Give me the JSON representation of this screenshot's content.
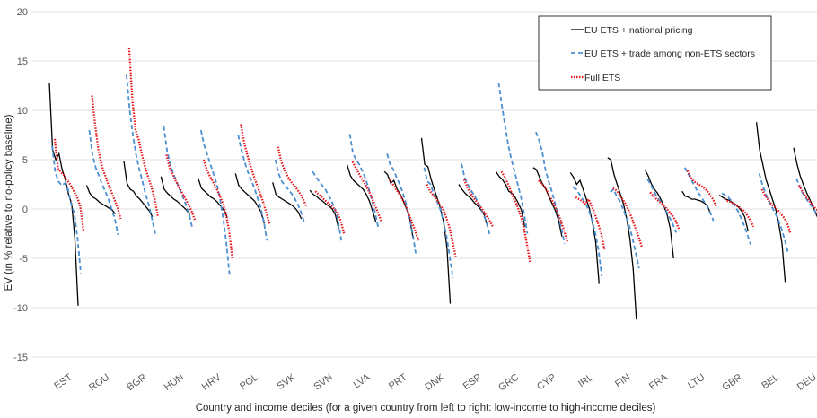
{
  "chart_data": {
    "type": "line",
    "xlabel": "Country and income deciles (for a given country from left to right: low-income to high-income deciles)",
    "ylabel": "EV (in % relative to no-policy baseline)",
    "ylim": [
      -15,
      20
    ],
    "yticks": [
      -15,
      -10,
      -5,
      0,
      5,
      10,
      15,
      20
    ],
    "grid": true,
    "legend_position": "top-right",
    "categories": [
      "EST",
      "ROU",
      "BGR",
      "HUN",
      "HRV",
      "POL",
      "SVK",
      "SVN",
      "LVA",
      "PRT",
      "DNK",
      "ESP",
      "GRC",
      "CYP",
      "IRL",
      "FIN",
      "FRA",
      "LTU",
      "GBR",
      "BEL",
      "DEU"
    ],
    "tick_labels": [
      "EST",
      "ROU",
      "BGR",
      "HUN",
      "HRV",
      "POL",
      "SVK",
      "SVN",
      "LVA",
      "PRT",
      "DNK",
      "ESP",
      "GRC",
      "CYP",
      "IRL",
      "FIN",
      "FRA",
      "LTU",
      "GBR",
      "BEL",
      "DEU"
    ],
    "series": [
      {
        "name": "EU ETS + national pricing",
        "color": "#000000",
        "dash": "solid",
        "values": [
          [
            12.8,
            6.0,
            5.0,
            5.6,
            4.0,
            3.0,
            1.5,
            0.5,
            -3.0,
            -9.8
          ],
          [
            2.4,
            1.6,
            1.2,
            1.0,
            0.7,
            0.5,
            0.3,
            0.1,
            -0.1,
            -0.5
          ],
          [
            4.9,
            2.6,
            2.0,
            1.8,
            1.3,
            1.0,
            0.6,
            0.2,
            -0.2,
            -0.8
          ],
          [
            3.3,
            2.0,
            1.6,
            1.3,
            1.0,
            0.8,
            0.5,
            0.2,
            -0.1,
            -0.6
          ],
          [
            3.1,
            2.1,
            1.8,
            1.5,
            1.2,
            1.0,
            0.7,
            0.3,
            -0.1,
            -0.8
          ],
          [
            3.6,
            2.4,
            2.0,
            1.7,
            1.4,
            1.1,
            0.8,
            0.3,
            -0.3,
            -1.5
          ],
          [
            2.7,
            1.5,
            1.2,
            1.0,
            0.8,
            0.6,
            0.4,
            0.1,
            -0.3,
            -1.0
          ],
          [
            1.9,
            1.5,
            1.3,
            1.0,
            0.8,
            0.5,
            0.3,
            0.0,
            -0.6,
            -2.0
          ],
          [
            4.5,
            3.4,
            2.9,
            2.6,
            2.3,
            2.0,
            1.5,
            0.8,
            -0.2,
            -1.3
          ],
          [
            3.8,
            3.5,
            2.6,
            2.9,
            2.0,
            1.5,
            0.8,
            0.0,
            -1.0,
            -3.0
          ],
          [
            7.2,
            4.5,
            4.3,
            3.0,
            2.0,
            1.0,
            0.0,
            -1.5,
            -4.0,
            -9.6
          ],
          [
            2.5,
            2.0,
            1.6,
            1.3,
            1.0,
            0.6,
            0.3,
            -0.1,
            -0.6,
            -1.8
          ],
          [
            3.8,
            3.3,
            3.0,
            2.5,
            1.8,
            1.6,
            1.2,
            0.6,
            -0.1,
            -1.8
          ],
          [
            4.2,
            4.0,
            3.2,
            2.5,
            2.0,
            1.2,
            0.5,
            -0.2,
            -1.2,
            -2.8
          ],
          [
            3.7,
            3.2,
            2.5,
            2.9,
            2.0,
            1.0,
            0.0,
            -1.5,
            -3.5,
            -7.6
          ],
          [
            5.2,
            5.0,
            3.5,
            2.5,
            1.5,
            0.5,
            -1.0,
            -3.0,
            -6.0,
            -11.2
          ],
          [
            4.0,
            3.4,
            2.6,
            2.0,
            1.6,
            1.0,
            0.3,
            -0.6,
            -2.0,
            -5.0
          ],
          [
            1.8,
            1.3,
            1.2,
            1.0,
            1.0,
            0.9,
            0.8,
            0.6,
            0.3,
            -0.5
          ],
          [
            1.4,
            1.2,
            1.0,
            0.9,
            0.7,
            0.5,
            0.2,
            -0.2,
            -0.8,
            -2.2
          ],
          [
            8.8,
            6.0,
            4.5,
            3.0,
            2.0,
            1.0,
            0.0,
            -1.5,
            -3.5,
            -7.4
          ],
          [
            6.2,
            4.6,
            3.4,
            2.5,
            1.7,
            1.0,
            0.3,
            -0.5,
            -1.2,
            -2.0
          ]
        ]
      },
      {
        "name": "EU ETS + trade among non-ETS sectors",
        "color": "#4a8fd1",
        "dash": "dashed",
        "values": [
          [
            6.4,
            3.7,
            2.8,
            2.4,
            2.6,
            2.0,
            0.5,
            -0.5,
            -3.0,
            -6.5
          ],
          [
            8.0,
            5.5,
            4.2,
            3.4,
            2.5,
            1.8,
            1.0,
            0.0,
            -1.0,
            -2.6
          ],
          [
            13.6,
            10.0,
            7.5,
            5.5,
            4.0,
            2.8,
            1.5,
            0.4,
            -1.0,
            -2.5
          ],
          [
            8.4,
            6.0,
            4.6,
            3.6,
            2.8,
            2.0,
            1.2,
            0.4,
            -0.6,
            -2.0
          ],
          [
            8.0,
            6.5,
            5.5,
            4.5,
            3.5,
            2.5,
            1.0,
            -1.0,
            -3.5,
            -6.8
          ],
          [
            7.5,
            6.0,
            4.8,
            3.8,
            3.0,
            2.2,
            1.2,
            0.2,
            -1.2,
            -3.2
          ],
          [
            5.0,
            3.6,
            2.8,
            2.4,
            2.0,
            1.6,
            1.1,
            0.5,
            -0.3,
            -1.3
          ],
          [
            3.8,
            3.3,
            2.8,
            2.4,
            2.0,
            1.4,
            0.8,
            0.0,
            -1.2,
            -3.2
          ],
          [
            7.6,
            5.6,
            5.0,
            4.5,
            3.8,
            3.0,
            2.0,
            0.8,
            -0.5,
            -2.0
          ],
          [
            5.6,
            4.5,
            4.0,
            3.2,
            2.5,
            1.6,
            0.5,
            -0.8,
            -2.4,
            -4.5
          ],
          [
            4.2,
            2.8,
            2.5,
            1.5,
            0.8,
            0.0,
            -1.2,
            -2.8,
            -4.8,
            -7.0
          ],
          [
            4.6,
            3.2,
            2.5,
            1.9,
            1.4,
            0.8,
            0.2,
            -0.6,
            -1.5,
            -2.8
          ],
          [
            12.8,
            10.5,
            8.5,
            6.5,
            5.0,
            3.8,
            2.5,
            1.2,
            -0.5,
            -2.5
          ],
          [
            7.8,
            7.0,
            5.8,
            4.0,
            2.8,
            1.8,
            0.6,
            -0.6,
            -2.0,
            -3.5
          ],
          [
            2.2,
            2.0,
            1.5,
            1.0,
            0.5,
            -0.2,
            -1.2,
            -2.5,
            -4.2,
            -6.8
          ],
          [
            1.7,
            2.0,
            1.3,
            0.8,
            0.0,
            -0.8,
            -1.8,
            -3.0,
            -4.5,
            -6.0
          ],
          [
            3.0,
            2.5,
            1.8,
            1.2,
            0.8,
            0.3,
            -0.3,
            -0.9,
            -1.6,
            -2.4
          ],
          [
            4.2,
            3.6,
            3.0,
            2.4,
            1.8,
            1.3,
            0.8,
            0.3,
            -0.4,
            -1.2
          ],
          [
            1.6,
            1.4,
            1.2,
            0.8,
            0.3,
            -0.2,
            -0.9,
            -1.7,
            -2.6,
            -3.6
          ],
          [
            3.6,
            2.5,
            1.6,
            0.8,
            0.2,
            -0.4,
            -1.1,
            -2.0,
            -3.1,
            -4.4
          ],
          [
            3.1,
            2.3,
            1.6,
            1.1,
            0.6,
            0.2,
            -0.3,
            -0.7,
            -1.1,
            -1.5
          ]
        ]
      },
      {
        "name": "Full ETS",
        "color": "#e8141a",
        "dash": "dotted",
        "values": [
          [
            7.1,
            4.1,
            3.7,
            3.4,
            2.9,
            2.4,
            1.8,
            1.2,
            0.3,
            -2.2
          ],
          [
            11.5,
            8.5,
            6.0,
            4.5,
            3.5,
            2.6,
            1.8,
            1.0,
            0.2,
            -1.0
          ],
          [
            16.3,
            11.0,
            8.0,
            7.0,
            5.5,
            4.2,
            3.2,
            2.2,
            1.0,
            -0.8
          ],
          [
            5.5,
            4.2,
            3.5,
            2.8,
            2.2,
            1.6,
            1.0,
            0.4,
            -0.3,
            -1.2
          ],
          [
            5.0,
            4.0,
            3.3,
            2.7,
            2.1,
            1.4,
            0.6,
            -0.5,
            -2.2,
            -5.0
          ],
          [
            8.6,
            6.8,
            5.5,
            4.4,
            3.4,
            2.5,
            1.6,
            0.7,
            -0.4,
            -1.6
          ],
          [
            6.3,
            4.8,
            4.0,
            3.3,
            2.8,
            2.4,
            2.0,
            1.5,
            0.9,
            0.2
          ],
          [
            1.8,
            1.5,
            1.2,
            0.9,
            0.6,
            0.3,
            0.0,
            -0.5,
            -1.2,
            -2.5
          ],
          [
            4.8,
            4.2,
            3.6,
            3.0,
            2.5,
            1.9,
            1.2,
            0.4,
            -0.4,
            -1.2
          ],
          [
            3.0,
            2.5,
            2.0,
            1.5,
            1.0,
            0.3,
            -0.5,
            -1.4,
            -2.2,
            -3.2
          ],
          [
            2.5,
            1.8,
            1.4,
            1.0,
            0.5,
            0.0,
            -0.8,
            -1.8,
            -3.2,
            -4.8
          ],
          [
            3.0,
            2.2,
            1.6,
            1.1,
            0.7,
            0.3,
            -0.2,
            -0.7,
            -1.2,
            -1.8
          ],
          [
            3.8,
            3.3,
            2.6,
            1.8,
            1.0,
            0.3,
            -0.6,
            -1.8,
            -3.5,
            -5.4
          ],
          [
            2.9,
            2.6,
            2.2,
            1.6,
            1.0,
            0.4,
            -0.4,
            -1.2,
            -2.2,
            -3.3
          ],
          [
            1.2,
            1.0,
            0.8,
            0.5,
            1.0,
            0.3,
            -0.5,
            -1.5,
            -2.5,
            -4.1
          ],
          [
            2.1,
            1.9,
            1.5,
            1.0,
            0.5,
            -0.2,
            -1.0,
            -1.9,
            -2.8,
            -3.8
          ],
          [
            1.7,
            1.3,
            1.0,
            0.7,
            0.4,
            0.1,
            -0.3,
            -0.7,
            -1.2,
            -2.0
          ],
          [
            3.9,
            3.2,
            2.8,
            2.6,
            2.4,
            2.2,
            1.9,
            1.5,
            1.0,
            0.3
          ],
          [
            1.0,
            0.8,
            0.7,
            0.5,
            0.3,
            0.1,
            -0.2,
            -0.6,
            -1.1,
            -1.8
          ],
          [
            2.0,
            1.4,
            0.9,
            0.5,
            0.2,
            -0.1,
            -0.5,
            -0.9,
            -1.5,
            -2.5
          ],
          [
            2.4,
            1.8,
            1.3,
            0.9,
            0.5,
            0.1,
            -0.2,
            -0.5,
            -0.9,
            -1.2
          ]
        ]
      }
    ]
  }
}
